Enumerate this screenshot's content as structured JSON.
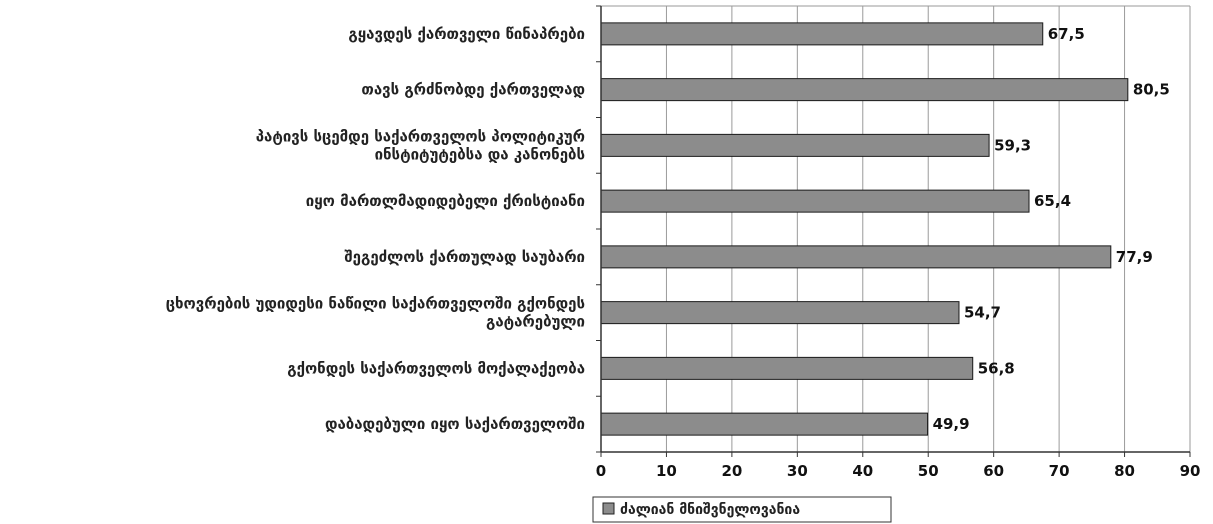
{
  "chart_data": {
    "type": "bar",
    "orientation": "horizontal",
    "categories": [
      [
        "გყავდეს ქართველი წინაპრები"
      ],
      [
        "თავს გრძნობდე ქართველად"
      ],
      [
        "პატივს სცემდე საქართველოს პოლიტიკურ",
        "ინსტიტუტებსა და კანონებს"
      ],
      [
        "იყო მართლმადიდებელი ქრისტიანი"
      ],
      [
        "შეგეძლოს ქართულად საუბარი"
      ],
      [
        "ცხოვრების უდიდესი ნაწილი საქართველოში გქონდეს",
        "გატარებული"
      ],
      [
        "გქონდეს საქართველოს მოქალაქეობა"
      ],
      [
        "დაბადებული იყო საქართველოში"
      ]
    ],
    "series": [
      {
        "name": "ძალიან მნიშვნელოვანია",
        "values": [
          67.5,
          80.5,
          59.3,
          65.4,
          77.9,
          54.7,
          56.8,
          49.9
        ],
        "value_labels": [
          "67,5",
          "80,5",
          "59,3",
          "65,4",
          "77,9",
          "54,7",
          "56,8",
          "49,9"
        ],
        "color": "#8c8c8c"
      }
    ],
    "xlim": [
      0,
      90
    ],
    "xticks": [
      0,
      10,
      20,
      30,
      40,
      50,
      60,
      70,
      80,
      90
    ],
    "grid": "vertical",
    "legend_position": "bottom-left",
    "title": "",
    "xlabel": "",
    "ylabel": ""
  }
}
